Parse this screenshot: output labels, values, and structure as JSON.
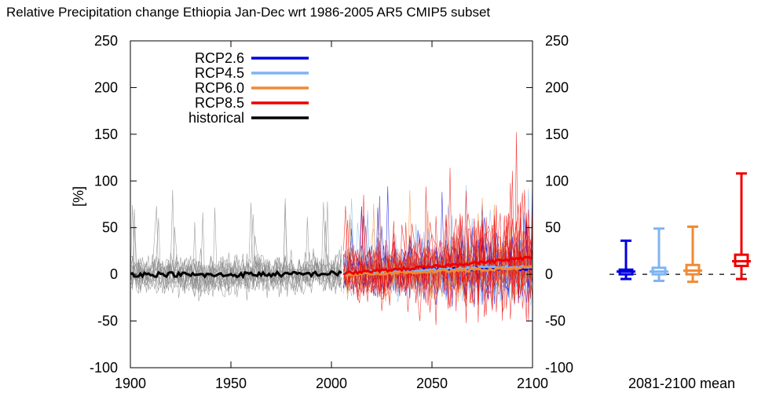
{
  "chart_data": {
    "type": "line",
    "title": "Relative Precipitation change Ethiopia Jan-Dec wrt 1986-2005 AR5 CMIP5 subset",
    "ylabel": "[%]",
    "xlabel": "",
    "xlim": [
      1900,
      2100
    ],
    "ylim": [
      -100,
      250
    ],
    "x_ticks": [
      1900,
      1950,
      2000,
      2050,
      2100
    ],
    "y_ticks": [
      -100,
      -50,
      0,
      50,
      100,
      150,
      200,
      250
    ],
    "grid": false,
    "legend_position": "top-left",
    "series": [
      {
        "name": "RCP2.6",
        "color": "#0000dd",
        "x": [
          2006,
          2025,
          2050,
          2075,
          2100
        ],
        "values": [
          1,
          3,
          5,
          6,
          6
        ]
      },
      {
        "name": "RCP4.5",
        "color": "#7fb4f0",
        "x": [
          2006,
          2025,
          2050,
          2075,
          2100
        ],
        "values": [
          1,
          3,
          5,
          7,
          8
        ]
      },
      {
        "name": "RCP6.0",
        "color": "#f08a33",
        "x": [
          2006,
          2025,
          2050,
          2075,
          2100
        ],
        "values": [
          0,
          1,
          3,
          5,
          7
        ]
      },
      {
        "name": "RCP8.5",
        "color": "#ee0000",
        "x": [
          2006,
          2025,
          2050,
          2075,
          2100
        ],
        "values": [
          1,
          4,
          8,
          13,
          18
        ]
      },
      {
        "name": "historical",
        "color": "#000000",
        "x": [
          1900,
          1920,
          1940,
          1960,
          1980,
          2005
        ],
        "values": [
          0,
          0,
          -1,
          0,
          0,
          1
        ]
      }
    ],
    "boxplot": {
      "label": "2081-2100 mean",
      "boxes": [
        {
          "name": "RCP2.6",
          "color": "#0000dd",
          "min": -5,
          "q1": 0,
          "median": 3,
          "q3": 5,
          "max": 36
        },
        {
          "name": "RCP4.5",
          "color": "#7fb4f0",
          "min": -7,
          "q1": 0,
          "median": 3,
          "q3": 7,
          "max": 49
        },
        {
          "name": "RCP6.0",
          "color": "#f08a33",
          "min": -8,
          "q1": 0,
          "median": 4,
          "q3": 10,
          "max": 51
        },
        {
          "name": "RCP8.5",
          "color": "#ee0000",
          "min": -5,
          "q1": 9,
          "median": 14,
          "q3": 21,
          "max": 108
        }
      ]
    }
  }
}
